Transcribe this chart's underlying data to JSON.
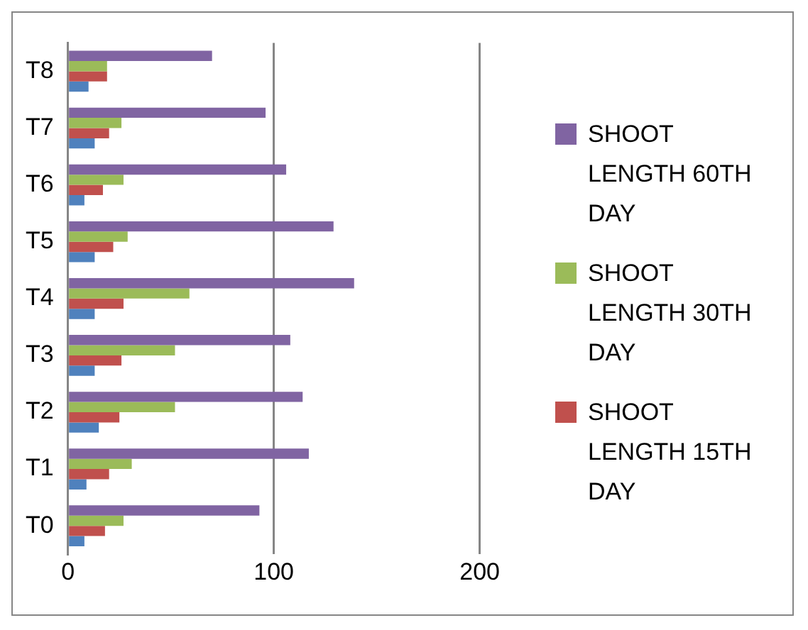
{
  "chart_data": {
    "type": "bar",
    "orientation": "horizontal",
    "categories": [
      "T8",
      "T7",
      "T6",
      "T5",
      "T4",
      "T3",
      "T2",
      "T1",
      "T0"
    ],
    "series": [
      {
        "name": "SHOOT LENGTH 60TH DAY",
        "color": "#8064a2",
        "values": [
          70,
          96,
          106,
          129,
          139,
          108,
          114,
          117,
          93
        ]
      },
      {
        "name": "SHOOT LENGTH 30TH DAY",
        "color": "#9bbb59",
        "values": [
          19,
          26,
          27,
          29,
          59,
          52,
          52,
          31,
          27
        ]
      },
      {
        "name": "SHOOT LENGTH 15TH DAY",
        "color": "#c0504d",
        "values": [
          19,
          20,
          17,
          22,
          27,
          26,
          25,
          20,
          18
        ]
      },
      {
        "color": "#4f81bd",
        "values": [
          10,
          13,
          8,
          13,
          13,
          13,
          15,
          9,
          8
        ]
      }
    ],
    "xlim": [
      0,
      200
    ],
    "xticks": [
      0,
      100,
      200
    ],
    "grid": "x",
    "legend": "right"
  }
}
